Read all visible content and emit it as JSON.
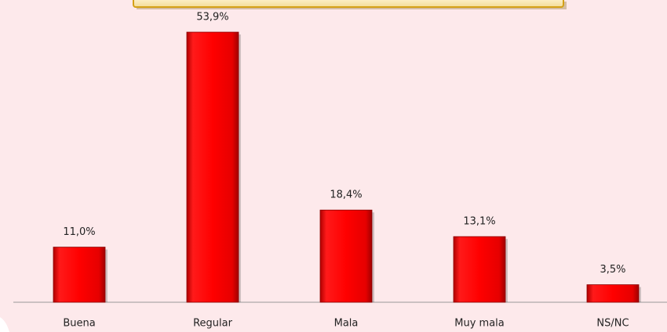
{
  "chart_data": {
    "type": "bar",
    "categories": [
      "Buena",
      "Regular",
      "Mala",
      "Muy mala",
      "NS/NC"
    ],
    "values": [
      11.0,
      53.9,
      18.4,
      13.1,
      3.5
    ],
    "value_labels": [
      "11,0%",
      "53,9%",
      "18,4%",
      "13,1%",
      "3,5%"
    ],
    "color": "#ff0000",
    "ylim": [
      0,
      60
    ]
  }
}
